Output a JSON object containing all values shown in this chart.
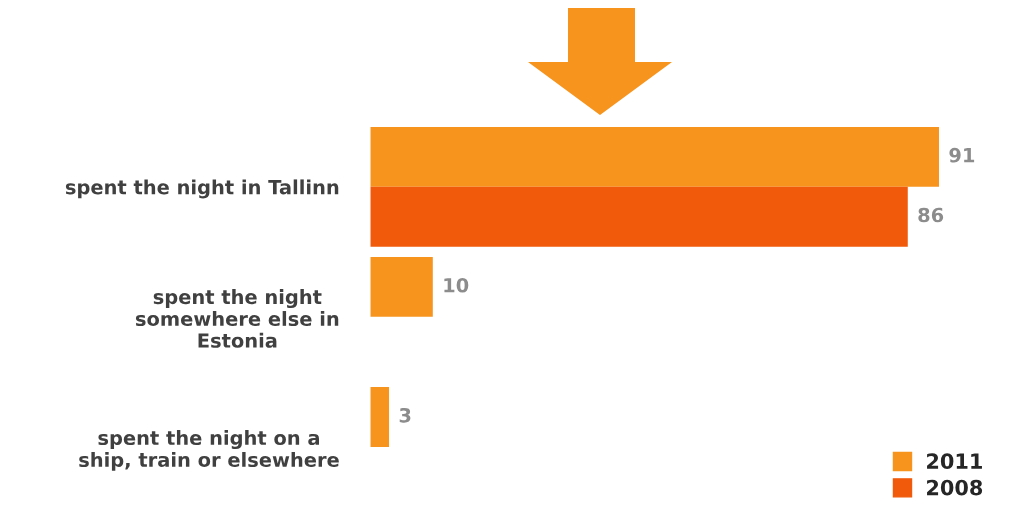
{
  "chart_data": {
    "type": "bar",
    "orientation": "horizontal",
    "categories": [
      "spent the night in Tallinn",
      "spent the night\nsomewhere else in\nEstonia",
      "spent the night on a\nship, train or elsewhere"
    ],
    "series": [
      {
        "name": "2011",
        "color": "#f7941d",
        "values": [
          91,
          10,
          3
        ]
      },
      {
        "name": "2008",
        "color": "#f05a0a",
        "values": [
          86,
          null,
          null
        ]
      }
    ],
    "data_labels": true,
    "legend": "bottom right",
    "grid": false,
    "tick_labels": "y"
  }
}
